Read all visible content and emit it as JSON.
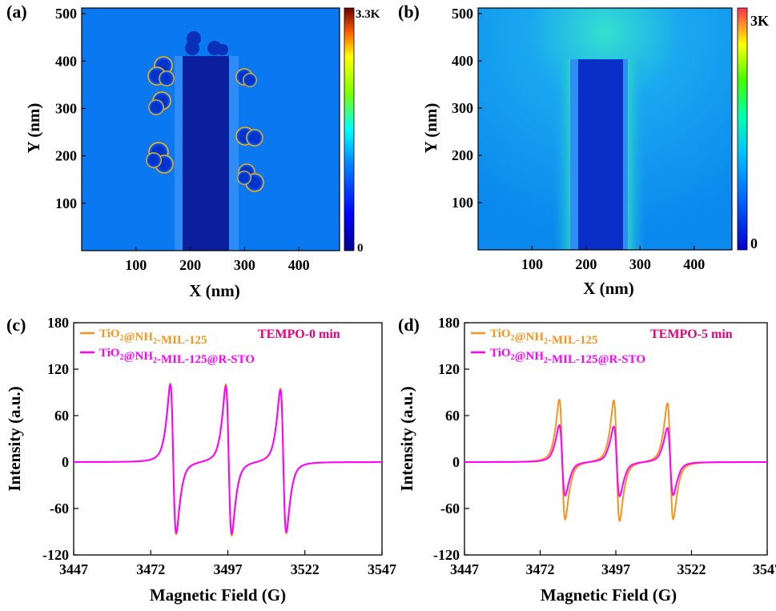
{
  "panels": {
    "a": {
      "label": "(a)",
      "xlabel": "X (nm)",
      "ylabel": "Y (nm)",
      "xticks": [
        "100",
        "200",
        "300",
        "400"
      ],
      "yticks": [
        "100",
        "200",
        "300",
        "400",
        "500"
      ],
      "colorbar": {
        "max_label": "3.3K",
        "min_label": "0"
      }
    },
    "b": {
      "label": "(b)",
      "xlabel": "X (nm)",
      "ylabel": "Y (nm)",
      "xticks": [
        "100",
        "200",
        "300",
        "400"
      ],
      "yticks": [
        "100",
        "200",
        "300",
        "400",
        "500"
      ],
      "colorbar": {
        "max_label": "3K",
        "min_label": "0"
      }
    },
    "c": {
      "label": "(c)",
      "annotation": "TEMPO-0 min"
    },
    "d": {
      "label": "(d)",
      "annotation": "TEMPO-5 min"
    }
  },
  "colors": {
    "series_orange": "#F7941D",
    "series_magenta": "#FF00FF",
    "annotation": "#E4007F"
  },
  "chart_data": [
    {
      "panel": "c",
      "type": "line",
      "title": "",
      "xlabel": "Magnetic Field (G)",
      "ylabel": "Intensity (a.u.)",
      "xlim": [
        3447,
        3547
      ],
      "ylim": [
        -120,
        180
      ],
      "xticks": [
        3447,
        3472,
        3497,
        3522,
        3547
      ],
      "yticks": [
        -120,
        -60,
        0,
        60,
        120,
        180
      ],
      "legend_position": "top-left",
      "line_centers_G": [
        3479.3,
        3497.3,
        3515.0
      ],
      "series": [
        {
          "name_main": "TiO",
          "name_sub1": "2",
          "name_mid": "@NH",
          "name_sub2": "2",
          "name_tail": "-MIL-125",
          "color": "#F7941D",
          "peak_max": [
            117,
            116,
            110
          ],
          "peak_min": [
            -108,
            -110,
            -106
          ]
        },
        {
          "name_main": "TiO",
          "name_sub1": "2",
          "name_mid": "@NH",
          "name_sub2": "2",
          "name_tail": "-MIL-125@R-STO",
          "color": "#FF00FF",
          "peak_max": [
            115,
            113,
            108
          ],
          "peak_min": [
            -106,
            -107,
            -104
          ]
        }
      ]
    },
    {
      "panel": "d",
      "type": "line",
      "title": "",
      "xlabel": "Magnetic Field (G)",
      "ylabel": "Intensity (a.u.)",
      "xlim": [
        3447,
        3547
      ],
      "ylim": [
        -120,
        180
      ],
      "xticks": [
        3447,
        3472,
        3497,
        3522,
        3547
      ],
      "yticks": [
        -120,
        -60,
        0,
        60,
        120,
        180
      ],
      "legend_position": "top-left",
      "line_centers_G": [
        3479.3,
        3497.3,
        3515.0
      ],
      "series": [
        {
          "name_main": "TiO",
          "name_sub1": "2",
          "name_mid": "@NH",
          "name_sub2": "2",
          "name_tail": "-MIL-125",
          "color": "#F7941D",
          "peak_max": [
            93,
            92,
            88
          ],
          "peak_min": [
            -86,
            -88,
            -85
          ]
        },
        {
          "name_main": "TiO",
          "name_sub1": "2",
          "name_mid": "@NH",
          "name_sub2": "2",
          "name_tail": "-MIL-125@R-STO",
          "color": "#FF00FF",
          "peak_max": [
            55,
            53,
            51
          ],
          "peak_min": [
            -50,
            -51,
            -49
          ]
        }
      ]
    }
  ]
}
